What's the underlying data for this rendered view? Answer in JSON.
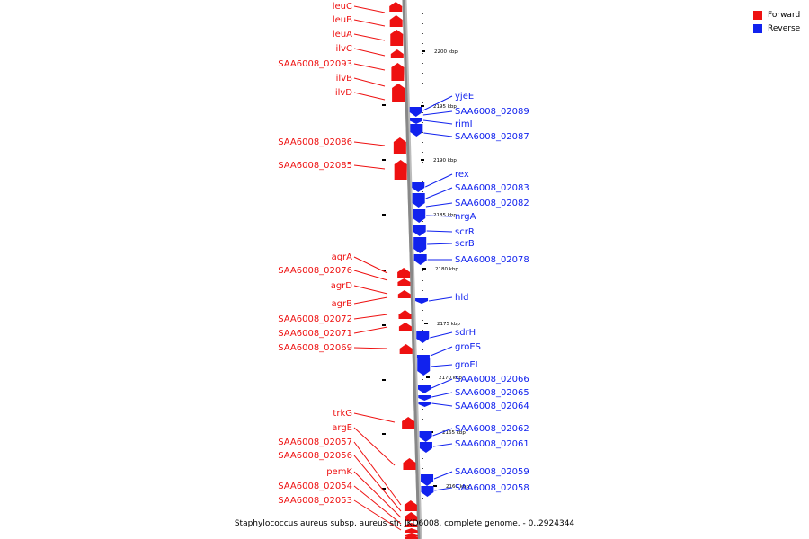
{
  "caption": "Staphylococcus aureus subsp. aureus str. JKD6008, complete genome. - 0..2924344",
  "legend": [
    {
      "label": "Forward",
      "color": "#ee1111"
    },
    {
      "label": "Reverse",
      "color": "#1122ee"
    }
  ],
  "colors": {
    "forward": "#ee1111",
    "reverse": "#1122ee",
    "backbone": "#888888"
  },
  "ticks": [
    "2200 kbp",
    "2195 kbp",
    "2190 kbp",
    "2185 kbp",
    "2180 kbp",
    "2175 kbp",
    "2170 kbp",
    "2165 kbp",
    "2160 kbp"
  ],
  "forward_genes": [
    "leuC",
    "leuB",
    "leuA",
    "ilvC",
    "SAA6008_02093",
    "ilvB",
    "ilvD",
    "SAA6008_02086",
    "SAA6008_02085",
    "agrA",
    "SAA6008_02076",
    "agrD",
    "agrB",
    "SAA6008_02072",
    "SAA6008_02071",
    "SAA6008_02069",
    "trkG",
    "argE",
    "SAA6008_02057",
    "SAA6008_02056",
    "pemK",
    "SAA6008_02054",
    "SAA6008_02053"
  ],
  "reverse_genes": [
    "yjeE",
    "SAA6008_02089",
    "rimI",
    "SAA6008_02087",
    "rex",
    "SAA6008_02083",
    "SAA6008_02082",
    "nrgA",
    "scrR",
    "scrB",
    "SAA6008_02078",
    "hld",
    "sdrH",
    "groES",
    "groEL",
    "SAA6008_02066",
    "SAA6008_02065",
    "SAA6008_02064",
    "SAA6008_02062",
    "SAA6008_02061",
    "SAA6008_02059",
    "SAA6008_02058"
  ]
}
